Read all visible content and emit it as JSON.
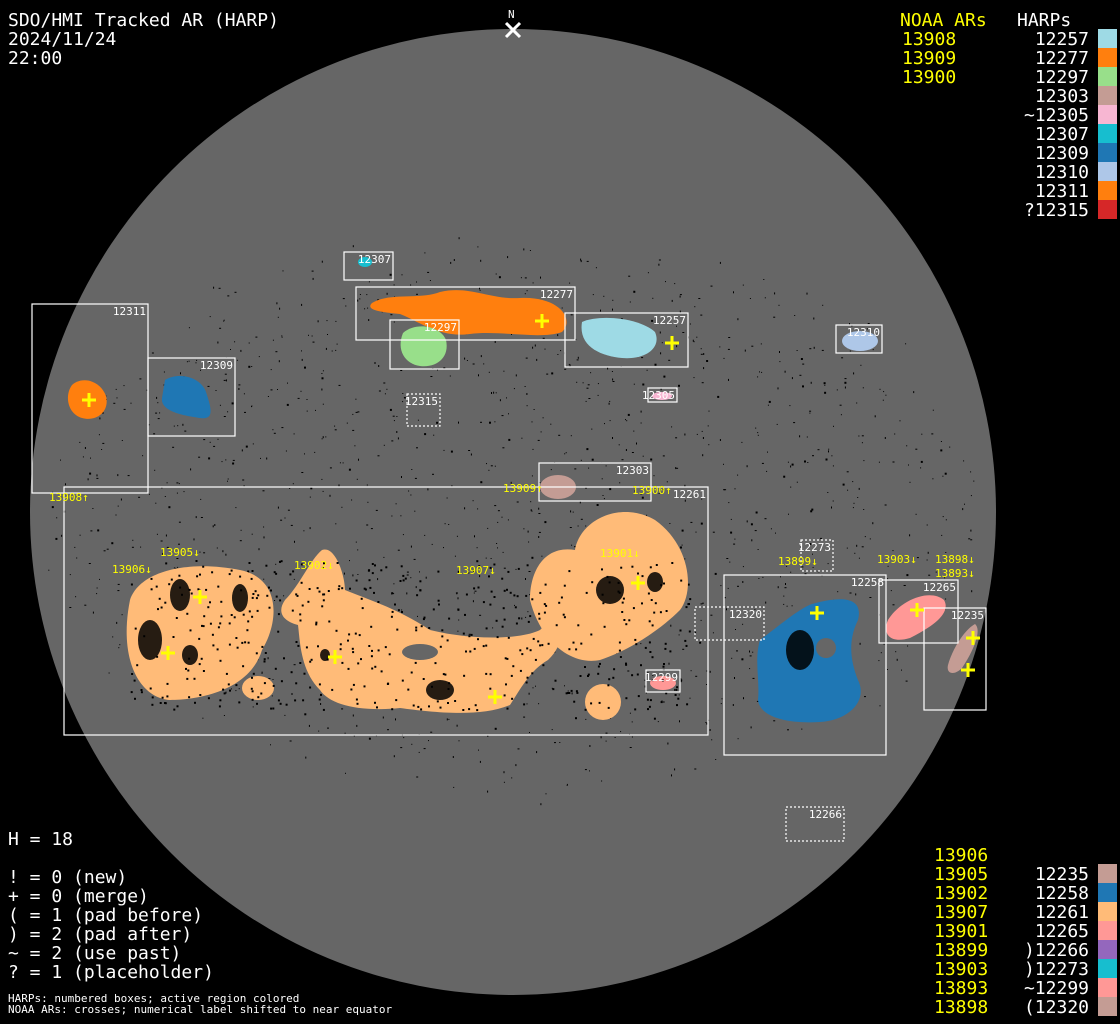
{
  "header": {
    "title": "SDO/HMI Tracked AR (HARP)",
    "date": "2024/11/24",
    "time": "22:00",
    "north_label": "N"
  },
  "legend_top": {
    "noaa_title": "NOAA ARs",
    "harps_title": "HARPs",
    "noaa": [
      "13908",
      "13909",
      "13900"
    ],
    "harps": [
      {
        "label": "12257",
        "color": "#9edae5"
      },
      {
        "label": "12277",
        "color": "#ff7f0e"
      },
      {
        "label": "12297",
        "color": "#98df8a"
      },
      {
        "label": "12303",
        "color": "#c49c94"
      },
      {
        "label": "~12305",
        "color": "#f7b6d2"
      },
      {
        "label": "12307",
        "color": "#17becf"
      },
      {
        "label": "12309",
        "color": "#1f77b4"
      },
      {
        "label": "12310",
        "color": "#aec7e8"
      },
      {
        "label": "12311",
        "color": "#ff7f0e"
      },
      {
        "label": "?12315",
        "color": "#d62728"
      }
    ]
  },
  "legend_bottom": {
    "noaa": [
      "13906",
      "13905",
      "13902",
      "13907",
      "13901",
      "13899",
      "13903",
      "13893",
      "13898"
    ],
    "harps": [
      {
        "label": "12235",
        "color": "#c49c94"
      },
      {
        "label": "12258",
        "color": "#1f77b4"
      },
      {
        "label": "12261",
        "color": "#ffbb78"
      },
      {
        "label": "12265",
        "color": "#ff9896"
      },
      {
        "label": ")12266",
        "color": "#9467bd"
      },
      {
        "label": ")12273",
        "color": "#17becf"
      },
      {
        "label": "~12299",
        "color": "#ff9896"
      },
      {
        "label": "(12320",
        "color": "#c49c94"
      }
    ]
  },
  "stats": {
    "h_count": "H = 18",
    "lines": [
      "! = 0 (new)",
      "+ = 0 (merge)",
      "( = 1 (pad before)",
      ") = 2 (pad after)",
      "~ = 2 (use past)",
      "? = 1 (placeholder)"
    ]
  },
  "footnotes": [
    "HARPs: numbered boxes; active region colored",
    "NOAA ARs: crosses; numerical label shifted to near equator"
  ],
  "disk": {
    "background": "#666666",
    "harp_labels": [
      "12307",
      "12277",
      "12297",
      "12257",
      "12310",
      "12305",
      "12315",
      "12311",
      "12309",
      "12303",
      "12261",
      "12273",
      "12258",
      "12265",
      "12235",
      "12320",
      "12299",
      "12266"
    ],
    "noaa_labels": [
      "13908↑",
      "13909↑",
      "13900↑",
      "13905↓",
      "13906↓",
      "13902↓",
      "13907↓",
      "13901↓",
      "13899↓",
      "13903↓",
      "13893↓",
      "13898↓"
    ]
  }
}
